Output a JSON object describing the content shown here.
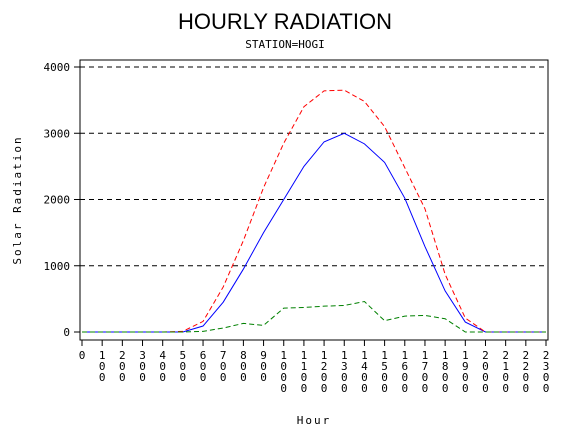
{
  "chart_data": {
    "type": "line",
    "title": "HOURLY RADIATION",
    "subtitle": "STATION=HOGI",
    "xlabel": "Hour",
    "ylabel": "Solar Radiation",
    "xlim": [
      0,
      2300
    ],
    "ylim": [
      0,
      4000
    ],
    "grid": "horizontal dashed",
    "x_ticks": [
      0,
      100,
      200,
      300,
      400,
      500,
      600,
      700,
      800,
      900,
      1000,
      1100,
      1200,
      1300,
      1400,
      1500,
      1600,
      1700,
      1800,
      1900,
      2000,
      2100,
      2200,
      2300
    ],
    "x_tick_labels": [
      "0",
      "100",
      "200",
      "300",
      "400",
      "500",
      "600",
      "700",
      "800",
      "900",
      "1000",
      "1100",
      "1200",
      "1300",
      "1400",
      "1500",
      "1600",
      "1700",
      "1800",
      "1900",
      "2000",
      "2100",
      "2200",
      "2300"
    ],
    "y_ticks": [
      0,
      1000,
      2000,
      3000,
      4000
    ],
    "y_tick_labels": [
      "0",
      "1000",
      "2000",
      "3000",
      "4000"
    ],
    "x": [
      0,
      100,
      200,
      300,
      400,
      500,
      600,
      700,
      800,
      900,
      1000,
      1100,
      1200,
      1300,
      1400,
      1500,
      1600,
      1700,
      1800,
      1900,
      2000,
      2100,
      2200,
      2300
    ],
    "series": [
      {
        "color": "#0000ff",
        "dash": "solid",
        "values": [
          0,
          0,
          0,
          0,
          0,
          0,
          90,
          450,
          950,
          1500,
          2000,
          2500,
          2870,
          3000,
          2840,
          2560,
          2020,
          1290,
          620,
          150,
          0,
          0,
          0,
          0
        ]
      },
      {
        "color": "#ff0000",
        "dash": "dashed",
        "values": [
          0,
          0,
          0,
          0,
          0,
          10,
          160,
          680,
          1380,
          2180,
          2850,
          3400,
          3640,
          3650,
          3480,
          3100,
          2480,
          1860,
          870,
          210,
          0,
          0,
          0,
          0
        ]
      },
      {
        "color": "#008000",
        "dash": "dashed",
        "values": [
          0,
          0,
          0,
          0,
          0,
          0,
          10,
          60,
          130,
          100,
          360,
          370,
          390,
          400,
          460,
          170,
          240,
          250,
          200,
          0,
          0,
          0,
          0,
          0
        ]
      }
    ]
  }
}
